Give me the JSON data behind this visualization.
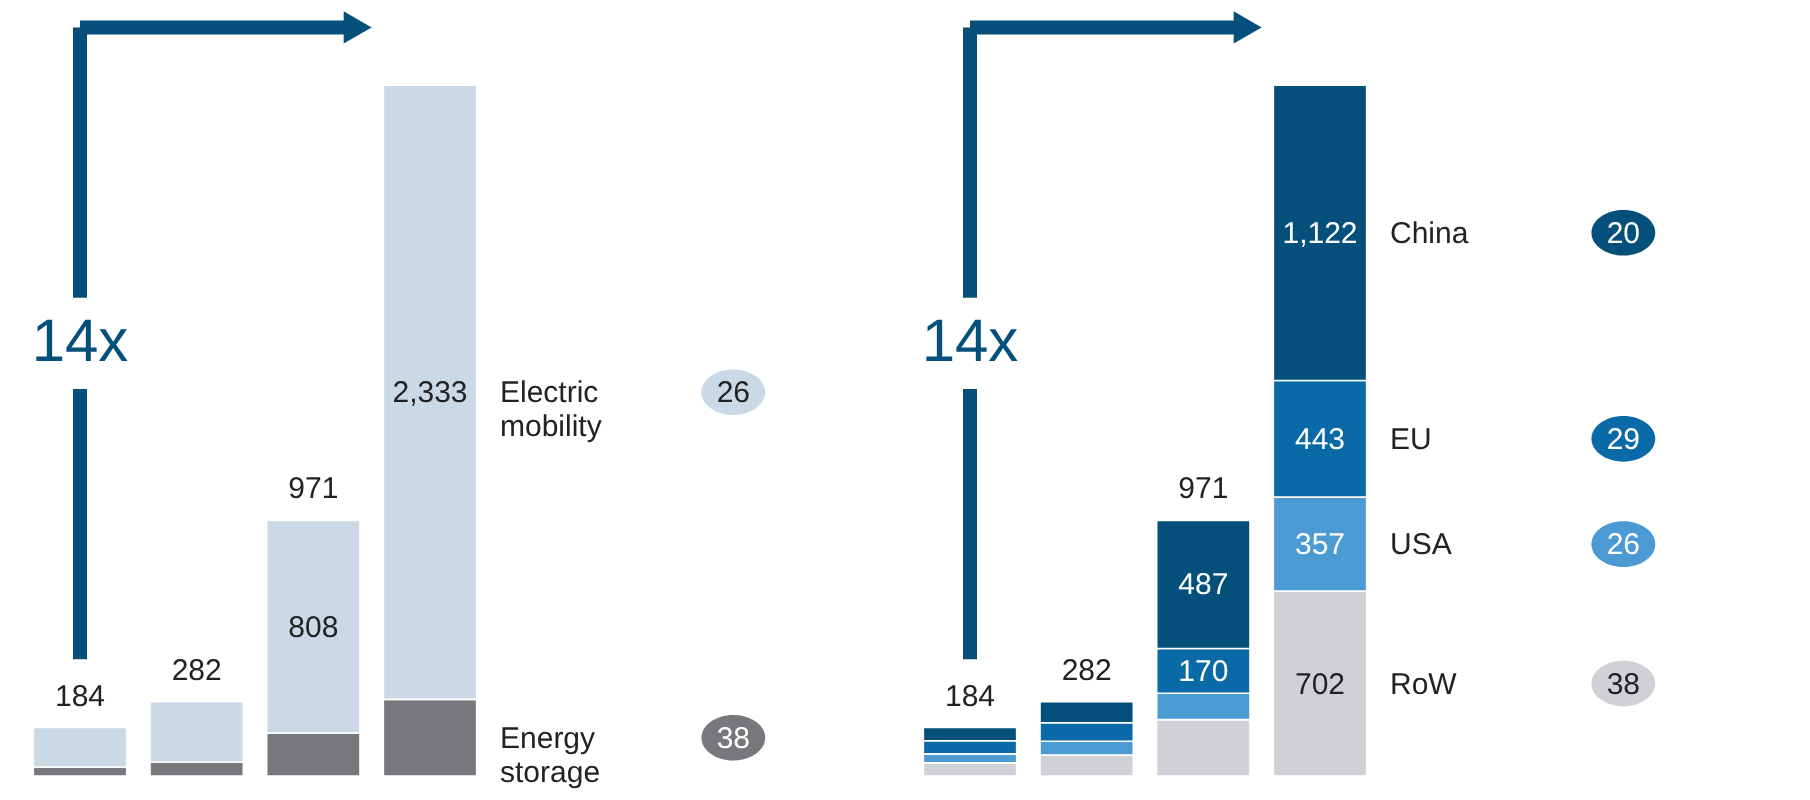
{
  "chart_data": [
    {
      "type": "bar",
      "stacked": true,
      "categories": [
        null,
        null,
        null,
        null
      ],
      "series": [
        {
          "name": "Energy storage",
          "color": "#77787b",
          "values": [
            34,
            52,
            163,
            291
          ],
          "value_labels": [
            null,
            null,
            null,
            null
          ]
        },
        {
          "name": "Electric mobility",
          "color": "#cbd9e6",
          "values": [
            150,
            230,
            808,
            2333
          ],
          "value_labels": [
            null,
            null,
            "808",
            "2,333"
          ]
        }
      ],
      "totals": [
        "184",
        "282",
        "971",
        null
      ],
      "annotations": [
        "14x",
        "38",
        "26"
      ]
    },
    {
      "type": "bar",
      "stacked": true,
      "categories": [
        null,
        null,
        null,
        null
      ],
      "series": [
        {
          "name": "RoW",
          "color": "#cfd1d6",
          "values": [
            50,
            80,
            214,
            702
          ],
          "value_labels": [
            null,
            null,
            null,
            "702"
          ]
        },
        {
          "name": "USA",
          "color": "#4c9ad4",
          "values": [
            34,
            52,
            100,
            357
          ],
          "value_labels": [
            null,
            null,
            null,
            "357"
          ]
        },
        {
          "name": "EU",
          "color": "#0a6aa8",
          "values": [
            50,
            70,
            170,
            443
          ],
          "value_labels": [
            null,
            null,
            "170",
            "443"
          ]
        },
        {
          "name": "China",
          "color": "#04507a",
          "values": [
            50,
            80,
            487,
            1122
          ],
          "value_labels": [
            null,
            null,
            "487",
            "1,122"
          ]
        }
      ],
      "totals": [
        "184",
        "282",
        "971",
        null
      ],
      "annotations": [
        "14x",
        "38",
        "26",
        "29",
        "20"
      ]
    }
  ]
}
